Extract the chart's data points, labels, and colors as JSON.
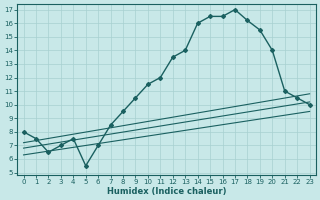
{
  "xlabel": "Humidex (Indice chaleur)",
  "bg_color": "#c8e8e8",
  "line_color": "#1a6060",
  "grid_color": "#a8d0d0",
  "xlim": [
    -0.5,
    23.5
  ],
  "ylim": [
    4.8,
    17.4
  ],
  "xticks": [
    0,
    1,
    2,
    3,
    4,
    5,
    6,
    7,
    8,
    9,
    10,
    11,
    12,
    13,
    14,
    15,
    16,
    17,
    18,
    19,
    20,
    21,
    22,
    23
  ],
  "yticks": [
    5,
    6,
    7,
    8,
    9,
    10,
    11,
    12,
    13,
    14,
    15,
    16,
    17
  ],
  "line1_x": [
    0,
    1,
    2,
    3,
    4,
    5,
    6,
    7,
    8,
    9,
    10,
    11,
    12,
    13,
    14,
    15,
    16,
    17,
    18,
    19,
    20,
    21,
    22,
    23
  ],
  "line1_y": [
    8.0,
    7.5,
    6.5,
    7.0,
    7.5,
    5.5,
    7.0,
    8.5,
    9.5,
    10.5,
    11.5,
    12.0,
    13.5,
    14.0,
    16.0,
    16.5,
    16.5,
    17.0,
    16.2,
    15.5,
    14.0,
    11.0,
    10.5,
    10.0
  ],
  "line2_x": [
    0,
    23
  ],
  "line2_y": [
    7.2,
    10.8
  ],
  "line3_x": [
    0,
    23
  ],
  "line3_y": [
    6.8,
    10.2
  ],
  "line4_x": [
    0,
    23
  ],
  "line4_y": [
    6.3,
    9.5
  ]
}
